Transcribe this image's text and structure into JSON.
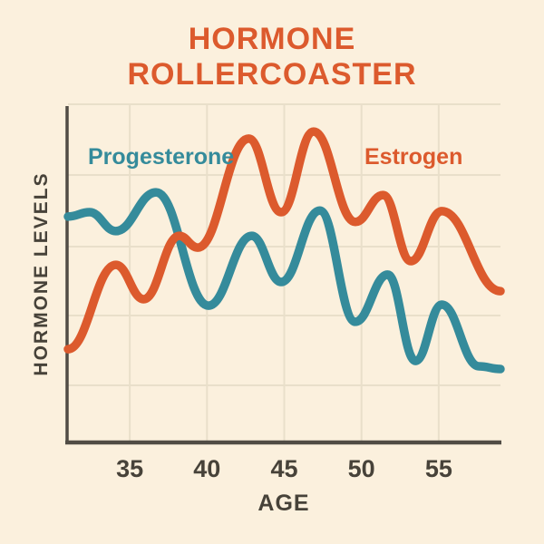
{
  "page": {
    "background_color": "#FBF0DD"
  },
  "chart_data": {
    "type": "line",
    "title_lines": [
      "HORMONE",
      "ROLLERCOASTER"
    ],
    "title_color": "#DC5A2D",
    "xlabel": "AGE",
    "ylabel": "HORMONE LEVELS",
    "x_ticks": [
      35,
      40,
      45,
      50,
      55
    ],
    "x_range": [
      31,
      59
    ],
    "y_range": [
      0,
      100
    ],
    "grid": true,
    "legend_position": "inside-top",
    "axis_color": "#514C45",
    "grid_color": "#E9DFCA",
    "text_color": "#474239",
    "line_width": 9.5,
    "series": [
      {
        "name": "Progesterone",
        "color": "#358B9B",
        "points": [
          [
            31.0,
            66.7
          ],
          [
            32.4,
            68.0
          ],
          [
            34.1,
            62.4
          ],
          [
            36.7,
            73.9
          ],
          [
            40.1,
            40.3
          ],
          [
            42.9,
            61.0
          ],
          [
            44.8,
            47.3
          ],
          [
            47.3,
            68.5
          ],
          [
            49.6,
            35.5
          ],
          [
            51.7,
            49.5
          ],
          [
            53.5,
            23.9
          ],
          [
            55.2,
            40.6
          ],
          [
            57.6,
            22.3
          ],
          [
            59.0,
            21.5
          ]
        ]
      },
      {
        "name": "Estrogen",
        "color": "#DC5A2D",
        "points": [
          [
            31.0,
            27.4
          ],
          [
            34.1,
            52.4
          ],
          [
            35.9,
            42.2
          ],
          [
            38.2,
            61.0
          ],
          [
            39.4,
            57.5
          ],
          [
            42.7,
            89.8
          ],
          [
            44.8,
            68.0
          ],
          [
            46.9,
            91.9
          ],
          [
            49.6,
            65.1
          ],
          [
            51.4,
            73.1
          ],
          [
            53.2,
            53.5
          ],
          [
            55.2,
            68.3
          ],
          [
            59.0,
            44.6
          ]
        ]
      }
    ]
  }
}
